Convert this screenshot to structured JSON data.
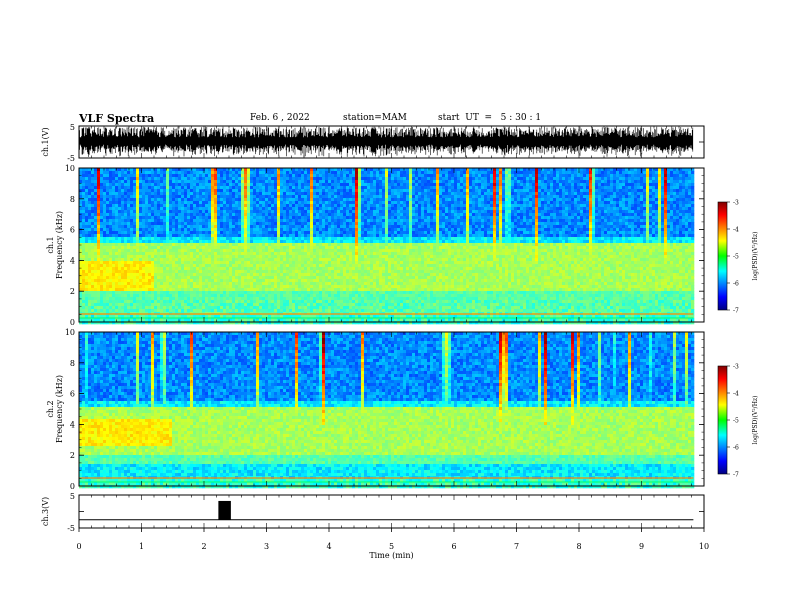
{
  "header": {
    "title": "VLF Spectra",
    "date": "Feb. 6 , 2022",
    "station": "station=MAM",
    "start": "start  UT  =   5 : 30 : 1"
  },
  "chart_data": [
    {
      "type": "line",
      "panel": "ch1-waveform",
      "ylabel": "ch.1(V)",
      "ylim": [
        -5,
        5
      ],
      "yticks": [
        "5",
        "-5"
      ],
      "xlim": [
        0,
        10
      ],
      "description_values": {
        "amplitude_range": [
          -4.8,
          4.8
        ],
        "data_end_min": 9.83
      }
    },
    {
      "type": "heatmap",
      "panel": "ch1-spectrogram",
      "ylabel": "ch.1\nFrequency (kHz)",
      "ylabel_top": "ch.1",
      "ylabel_bottom": "Frequency  (kHz)",
      "ylim": [
        0,
        10
      ],
      "yticks": [
        "0",
        "2",
        "4",
        "6",
        "8",
        "10"
      ],
      "xlim": [
        0,
        10
      ],
      "colorbar": {
        "label": "log(PSD)(V²/Hz)",
        "range": [
          -7,
          -3
        ],
        "ticks": [
          "-3",
          "-4",
          "-5",
          "-6",
          "-7"
        ]
      }
    },
    {
      "type": "heatmap",
      "panel": "ch2-spectrogram",
      "ylabel_top": "ch.2",
      "ylabel_bottom": "Frequency  (kHz)",
      "ylim": [
        0,
        10
      ],
      "yticks": [
        "0",
        "2",
        "4",
        "6",
        "8",
        "10"
      ],
      "xlim": [
        0,
        10
      ],
      "colorbar": {
        "label": "log(PSD)(V²/Hz)",
        "range": [
          -7,
          -3
        ],
        "ticks": [
          "-3",
          "-4",
          "-5",
          "-6",
          "-7"
        ]
      }
    },
    {
      "type": "line",
      "panel": "ch3-waveform",
      "ylabel": "ch.3(V)",
      "ylim": [
        -5,
        5
      ],
      "yticks": [
        "5",
        "-5"
      ],
      "xlim": [
        0,
        10
      ],
      "xlabel": "Time  (min)",
      "xticks": [
        "0",
        "1",
        "2",
        "3",
        "4",
        "5",
        "6",
        "7",
        "8",
        "9",
        "10"
      ],
      "baseline": -2.5,
      "pulse": {
        "start_min": 2.23,
        "end_min": 2.43,
        "high": 3.2
      }
    }
  ]
}
